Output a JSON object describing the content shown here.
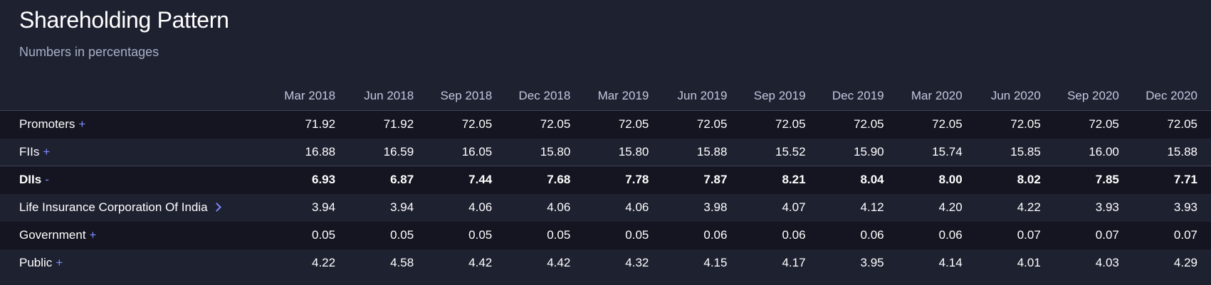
{
  "header": {
    "title": "Shareholding Pattern",
    "subtitle": "Numbers in percentages"
  },
  "columns": [
    "Mar 2018",
    "Jun 2018",
    "Sep 2018",
    "Dec 2018",
    "Mar 2019",
    "Jun 2019",
    "Sep 2019",
    "Dec 2019",
    "Mar 2020",
    "Jun 2020",
    "Sep 2020",
    "Dec 2020"
  ],
  "rows": [
    {
      "label": "Promoters",
      "toggle": "+",
      "values": [
        "71.92",
        "71.92",
        "72.05",
        "72.05",
        "72.05",
        "72.05",
        "72.05",
        "72.05",
        "72.05",
        "72.05",
        "72.05",
        "72.05"
      ]
    },
    {
      "label": "FIIs",
      "toggle": "+",
      "values": [
        "16.88",
        "16.59",
        "16.05",
        "15.80",
        "15.80",
        "15.88",
        "15.52",
        "15.90",
        "15.74",
        "15.85",
        "16.00",
        "15.88"
      ]
    },
    {
      "label": "DIIs",
      "toggle": "-",
      "values": [
        "6.93",
        "6.87",
        "7.44",
        "7.68",
        "7.78",
        "7.87",
        "8.21",
        "8.04",
        "8.00",
        "8.02",
        "7.85",
        "7.71"
      ]
    },
    {
      "label": "Life Insurance Corporation Of India",
      "toggle": "chevron-right-icon",
      "values": [
        "3.94",
        "3.94",
        "4.06",
        "4.06",
        "4.06",
        "3.98",
        "4.07",
        "4.12",
        "4.20",
        "4.22",
        "3.93",
        "3.93"
      ]
    },
    {
      "label": "Government",
      "toggle": "+",
      "values": [
        "0.05",
        "0.05",
        "0.05",
        "0.05",
        "0.05",
        "0.06",
        "0.06",
        "0.06",
        "0.06",
        "0.07",
        "0.07",
        "0.07"
      ]
    },
    {
      "label": "Public",
      "toggle": "+",
      "values": [
        "4.22",
        "4.58",
        "4.42",
        "4.42",
        "4.32",
        "4.15",
        "4.17",
        "3.95",
        "4.14",
        "4.01",
        "4.03",
        "4.29"
      ]
    }
  ],
  "colors": {
    "background": "#1e2130",
    "row_dark": "#141520",
    "accent": "#7d8cff",
    "header_text": "#c2c8de",
    "subtitle_text": "#a8aec6"
  }
}
